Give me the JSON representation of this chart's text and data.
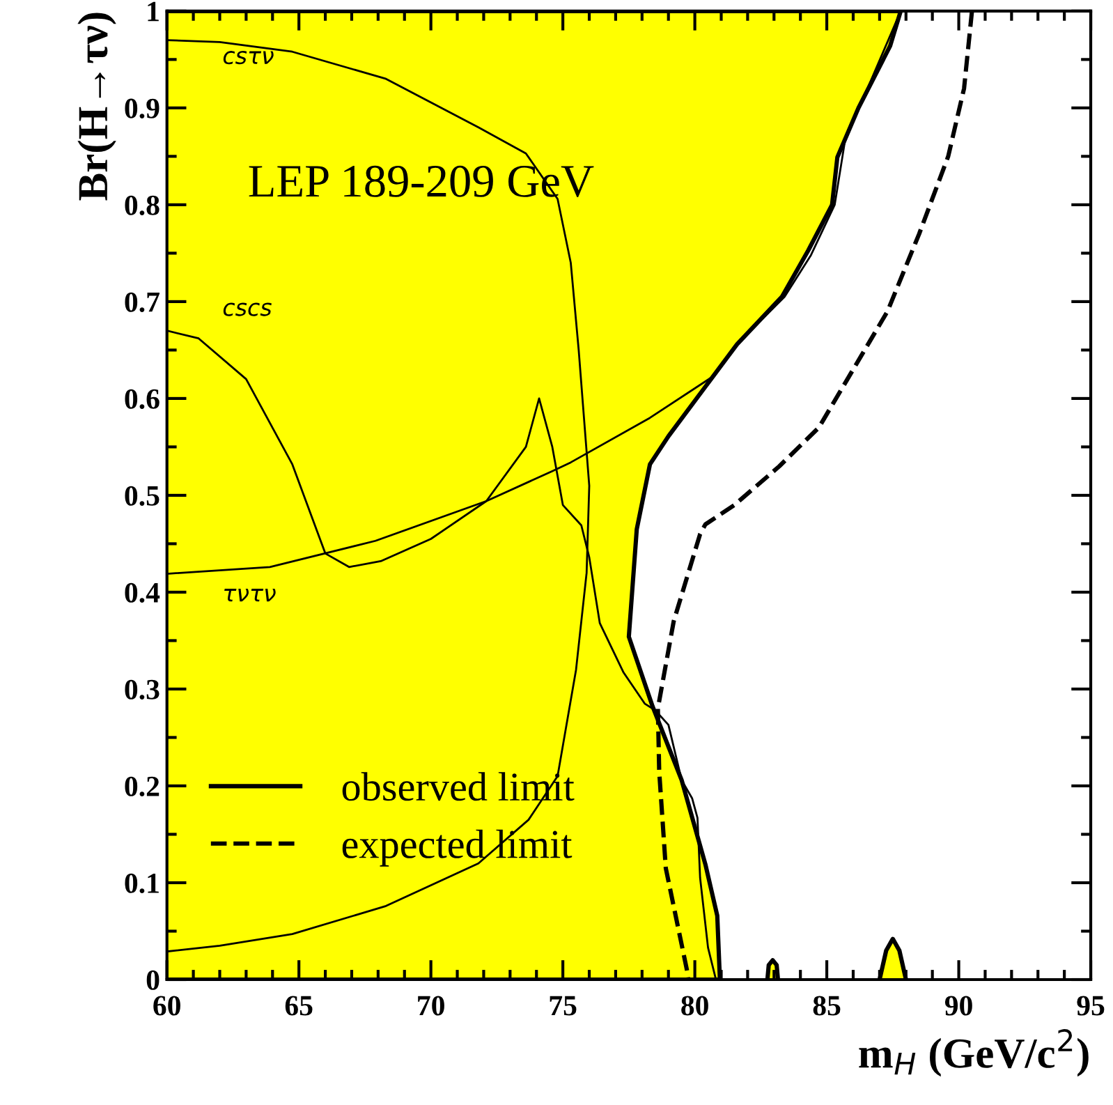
{
  "chart_data": {
    "type": "line",
    "xlabel": "m$_{H}$ (GeV/c$^{2}$)",
    "ylabel": "Br(H→τν)",
    "xlim": [
      60,
      95
    ],
    "ylim": [
      0,
      1
    ],
    "xticks": [
      60,
      65,
      70,
      75,
      80,
      85,
      90,
      95
    ],
    "yticks": [
      0,
      0.1,
      0.2,
      0.3,
      0.4,
      0.5,
      0.6,
      0.7,
      0.8,
      0.9,
      1
    ],
    "grid": false,
    "legend": "bottom left",
    "annotations": [
      "LEP 189-209 GeV",
      "csτν",
      "cscs",
      "τντν"
    ],
    "series": [
      {
        "color": "#000000",
        "x": [
          60,
          62,
          64.75,
          68.3,
          71.8,
          73.6,
          74.8,
          75.3,
          75.6,
          76.0,
          75.9,
          75.5,
          74.8,
          73.7,
          71.8,
          68.3,
          64.75,
          62,
          60
        ],
        "values": [
          0.97,
          0.968,
          0.958,
          0.93,
          0.88,
          0.853,
          0.806,
          0.74,
          0.65,
          0.51,
          0.42,
          0.32,
          0.21,
          0.165,
          0.12,
          0.076,
          0.047,
          0.035,
          0.029
        ]
      },
      {
        "color": "#000000",
        "x": [
          60,
          61.2,
          63,
          64.75,
          66,
          66.9,
          68.1,
          70,
          72.1,
          73.6,
          74.1,
          74.6,
          75.0,
          75.7,
          76.0,
          76.4,
          77.3,
          78.1,
          78.5,
          79.0,
          79.5,
          79.9,
          80.1,
          80.2,
          80.5,
          80.8
        ],
        "values": [
          0.67,
          0.662,
          0.62,
          0.532,
          0.44,
          0.426,
          0.432,
          0.455,
          0.494,
          0.55,
          0.6,
          0.55,
          0.49,
          0.469,
          0.436,
          0.368,
          0.317,
          0.285,
          0.278,
          0.263,
          0.206,
          0.187,
          0.167,
          0.105,
          0.033,
          0
        ]
      },
      {
        "color": "#000000",
        "x": [
          60,
          63.9,
          67.9,
          72.1,
          74.6,
          75.3,
          78.3,
          80.7,
          81.6,
          83.4,
          84.4,
          85.3,
          85.7,
          86.4,
          87.8
        ],
        "values": [
          0.419,
          0.426,
          0.453,
          0.494,
          0.525,
          0.534,
          0.58,
          0.623,
          0.656,
          0.705,
          0.748,
          0.8,
          0.868,
          0.911,
          1.0
        ]
      },
      {
        "type": "area",
        "name": "observed limit",
        "color": "#ffff00",
        "line_style": "solid",
        "x": [
          60,
          87.8,
          87.4,
          86.2,
          85.4,
          85.2,
          84.3,
          83.3,
          81.6,
          79.0,
          78.3,
          77.8,
          77.5,
          78.4,
          79.5,
          80.4,
          80.85,
          80.95,
          60,
          null,
          82.75,
          82.8,
          82.95,
          83.1,
          83.15,
          null,
          87.0,
          87.25,
          87.5,
          87.75,
          88.0
        ],
        "values": [
          1.0,
          1.0,
          0.964,
          0.9,
          0.849,
          0.8,
          0.753,
          0.705,
          0.656,
          0.561,
          0.532,
          0.465,
          0.354,
          0.282,
          0.206,
          0.119,
          0.066,
          0,
          0,
          null,
          0,
          0.015,
          0.02,
          0.015,
          0,
          null,
          0,
          0.03,
          0.042,
          0.03,
          0
        ]
      },
      {
        "name": "expected limit",
        "color": "#000000",
        "line_style": "dashed",
        "x": [
          90.5,
          90.2,
          89.6,
          88.5,
          87.3,
          86.0,
          84.7,
          83.2,
          81.5,
          80.4,
          80.2,
          79.2,
          78.6,
          78.65,
          78.9,
          79.7,
          79.75
        ],
        "values": [
          1.0,
          0.92,
          0.85,
          0.77,
          0.69,
          0.63,
          0.57,
          0.53,
          0.49,
          0.47,
          0.46,
          0.37,
          0.28,
          0.215,
          0.115,
          0.01,
          0
        ]
      }
    ]
  }
}
